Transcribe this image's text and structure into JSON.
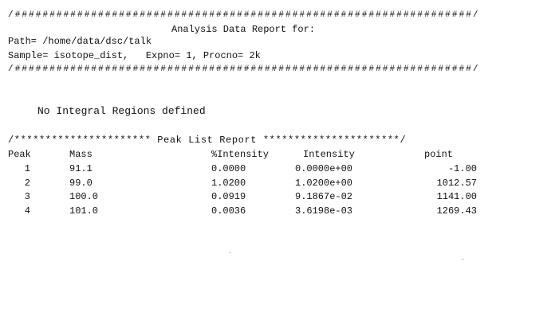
{
  "header": {
    "rule_top": "/##################################################################/",
    "title": "Analysis Data Report for:",
    "path": "Path= /home/data/dsc/talk",
    "sample": "Sample= isotope_dist,   Expno= 1, Procno= 2k",
    "rule_bottom": "/##################################################################/"
  },
  "integral_message": "No Integral Regions defined",
  "peak_list": {
    "title": "/********************** Peak List Report **********************/",
    "columns": [
      "Peak",
      "Mass",
      "%Intensity",
      "Intensity",
      "point"
    ],
    "rows": [
      [
        "1",
        "91.1",
        "0.0000",
        "0.0000e+00",
        "-1.00"
      ],
      [
        "2",
        "99.0",
        "1.0200",
        "1.0200e+00",
        "1012.57"
      ],
      [
        "3",
        "100.0",
        "0.0919",
        "9.1867e-02",
        "1141.00"
      ],
      [
        "4",
        "101.0",
        "0.0036",
        "3.6198e-03",
        "1269.43"
      ]
    ]
  }
}
